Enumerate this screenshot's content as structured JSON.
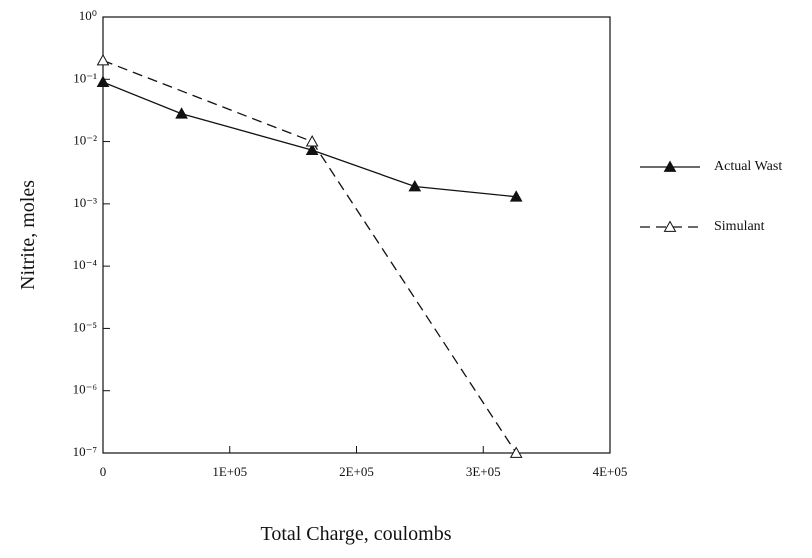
{
  "chart_data": {
    "type": "line",
    "x_label": "Total Charge, coulombs",
    "y_label": "Nitrite, moles",
    "y_scale": "log",
    "xlim": [
      0,
      400000
    ],
    "xticks": [
      0,
      {
        "value": 100000,
        "label": "1E+05"
      },
      {
        "value": 200000,
        "label": "2E+05"
      },
      {
        "value": 300000,
        "label": "3E+05"
      },
      {
        "value": 400000,
        "label": "4E+05"
      }
    ],
    "ylim": [
      1e-07,
      1
    ],
    "yticks": [
      {
        "value": 1,
        "label": "10⁰"
      },
      {
        "value": 0.1,
        "label": "10⁻¹"
      },
      {
        "value": 0.01,
        "label": "10⁻²"
      },
      {
        "value": 0.001,
        "label": "10⁻³"
      },
      {
        "value": 0.0001,
        "label": "10⁻⁴"
      },
      {
        "value": 1e-05,
        "label": "10⁻⁵"
      },
      {
        "value": 1e-06,
        "label": "10⁻⁶"
      },
      {
        "value": 1e-07,
        "label": "10⁻⁷"
      }
    ],
    "legend_position": "right",
    "series": [
      {
        "name": "Actual Wast",
        "color": "#111111",
        "line_style": "solid",
        "marker_fill": "filled",
        "x": [
          0,
          62000,
          165000,
          246000,
          326000
        ],
        "values": [
          0.09,
          0.028,
          0.0073,
          0.0019,
          0.0013
        ]
      },
      {
        "name": "Simulant",
        "color": "#111111",
        "line_style": "dashed",
        "marker_fill": "open",
        "x": [
          0,
          165000,
          326000
        ],
        "values": [
          0.2,
          0.01,
          1e-07
        ]
      }
    ]
  }
}
